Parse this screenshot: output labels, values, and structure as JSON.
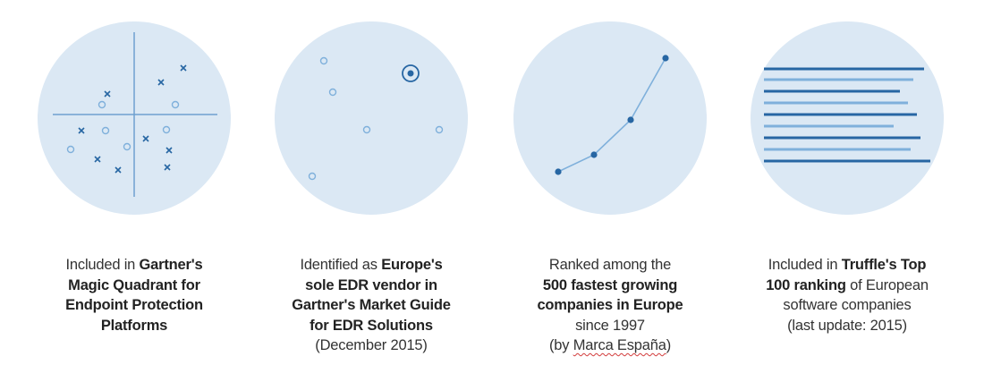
{
  "colors": {
    "circle_fill": "#dbe8f4",
    "mark": "#2766a3",
    "mark_light": "#7fb0db",
    "axis": "#6f9fd0"
  },
  "panels": [
    {
      "icon": "magic-quadrant-icon",
      "caption": {
        "l1_pre": "Included in ",
        "l1_bold": "Gartner's",
        "l2": "Magic Quadrant for",
        "l3": "Endpoint Protection",
        "l4": "Platforms"
      }
    },
    {
      "icon": "highlighted-dot-icon",
      "caption": {
        "l1_pre": "Identified as ",
        "l1_bold": "Europe's",
        "l2": "sole EDR vendor in",
        "l3": "Gartner's Market Guide",
        "l4": "for EDR Solutions",
        "l5": "(December 2015)"
      }
    },
    {
      "icon": "growth-line-icon",
      "caption": {
        "l1": "Ranked among the",
        "l2": "500 fastest growing",
        "l3": "companies in Europe",
        "l4": "since 1997",
        "l5_pre": "(by ",
        "l5_u": "Marca España",
        "l5_post": ")"
      }
    },
    {
      "icon": "ranking-lines-icon",
      "caption": {
        "l1_pre": "Included in ",
        "l1_bold": "Truffle's Top",
        "l2_bold": "100 ranking",
        "l2_post": " of European",
        "l3": "software companies",
        "l4": "(last update: 2015)"
      }
    }
  ]
}
